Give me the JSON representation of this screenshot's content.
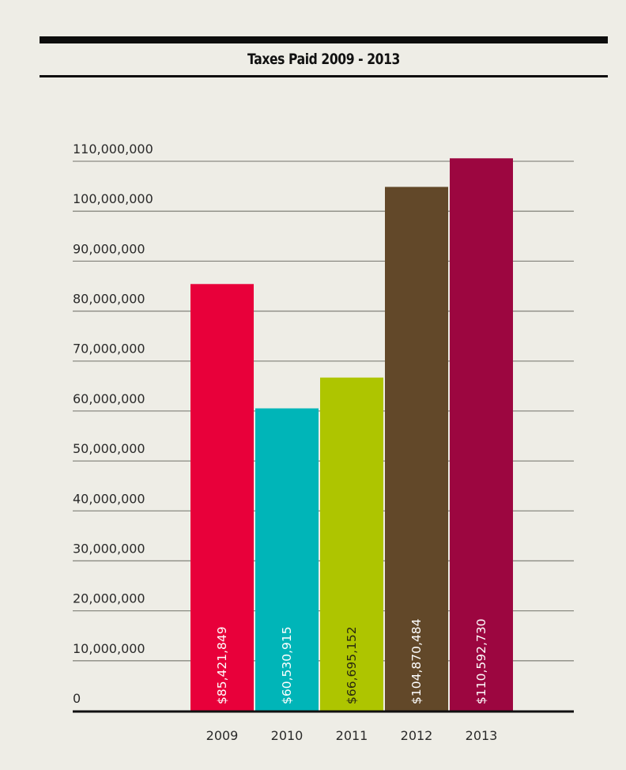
{
  "chart_data": {
    "type": "bar",
    "title": "Taxes Paid 2009 - 2013",
    "categories": [
      "2009",
      "2010",
      "2011",
      "2012",
      "2013"
    ],
    "values": [
      85421849,
      60530915,
      66695152,
      104870484,
      110592730
    ],
    "value_labels": [
      "$85,421,849",
      "$60,530,915",
      "$66,695,152",
      "$104,870,484",
      "$110,592,730"
    ],
    "colors": [
      "#e8003a",
      "#00b5b8",
      "#aec500",
      "#624829",
      "#9c0640"
    ],
    "value_label_colors": [
      "#ffffff",
      "#ffffff",
      "#2a2a10",
      "#ffffff",
      "#ffffff"
    ],
    "ylim": [
      0,
      110000000
    ],
    "yticks": [
      0,
      10000000,
      20000000,
      30000000,
      40000000,
      50000000,
      60000000,
      70000000,
      80000000,
      90000000,
      100000000,
      110000000
    ],
    "ytick_labels": [
      "0",
      "10,000,000",
      "20,000,000",
      "30,000,000",
      "40,000,000",
      "50,000,000",
      "60,000,000",
      "70,000,000",
      "80,000,000",
      "90,000,000",
      "100,000,000",
      "110,000,000"
    ],
    "grid": true,
    "xlabel": "",
    "ylabel": ""
  }
}
